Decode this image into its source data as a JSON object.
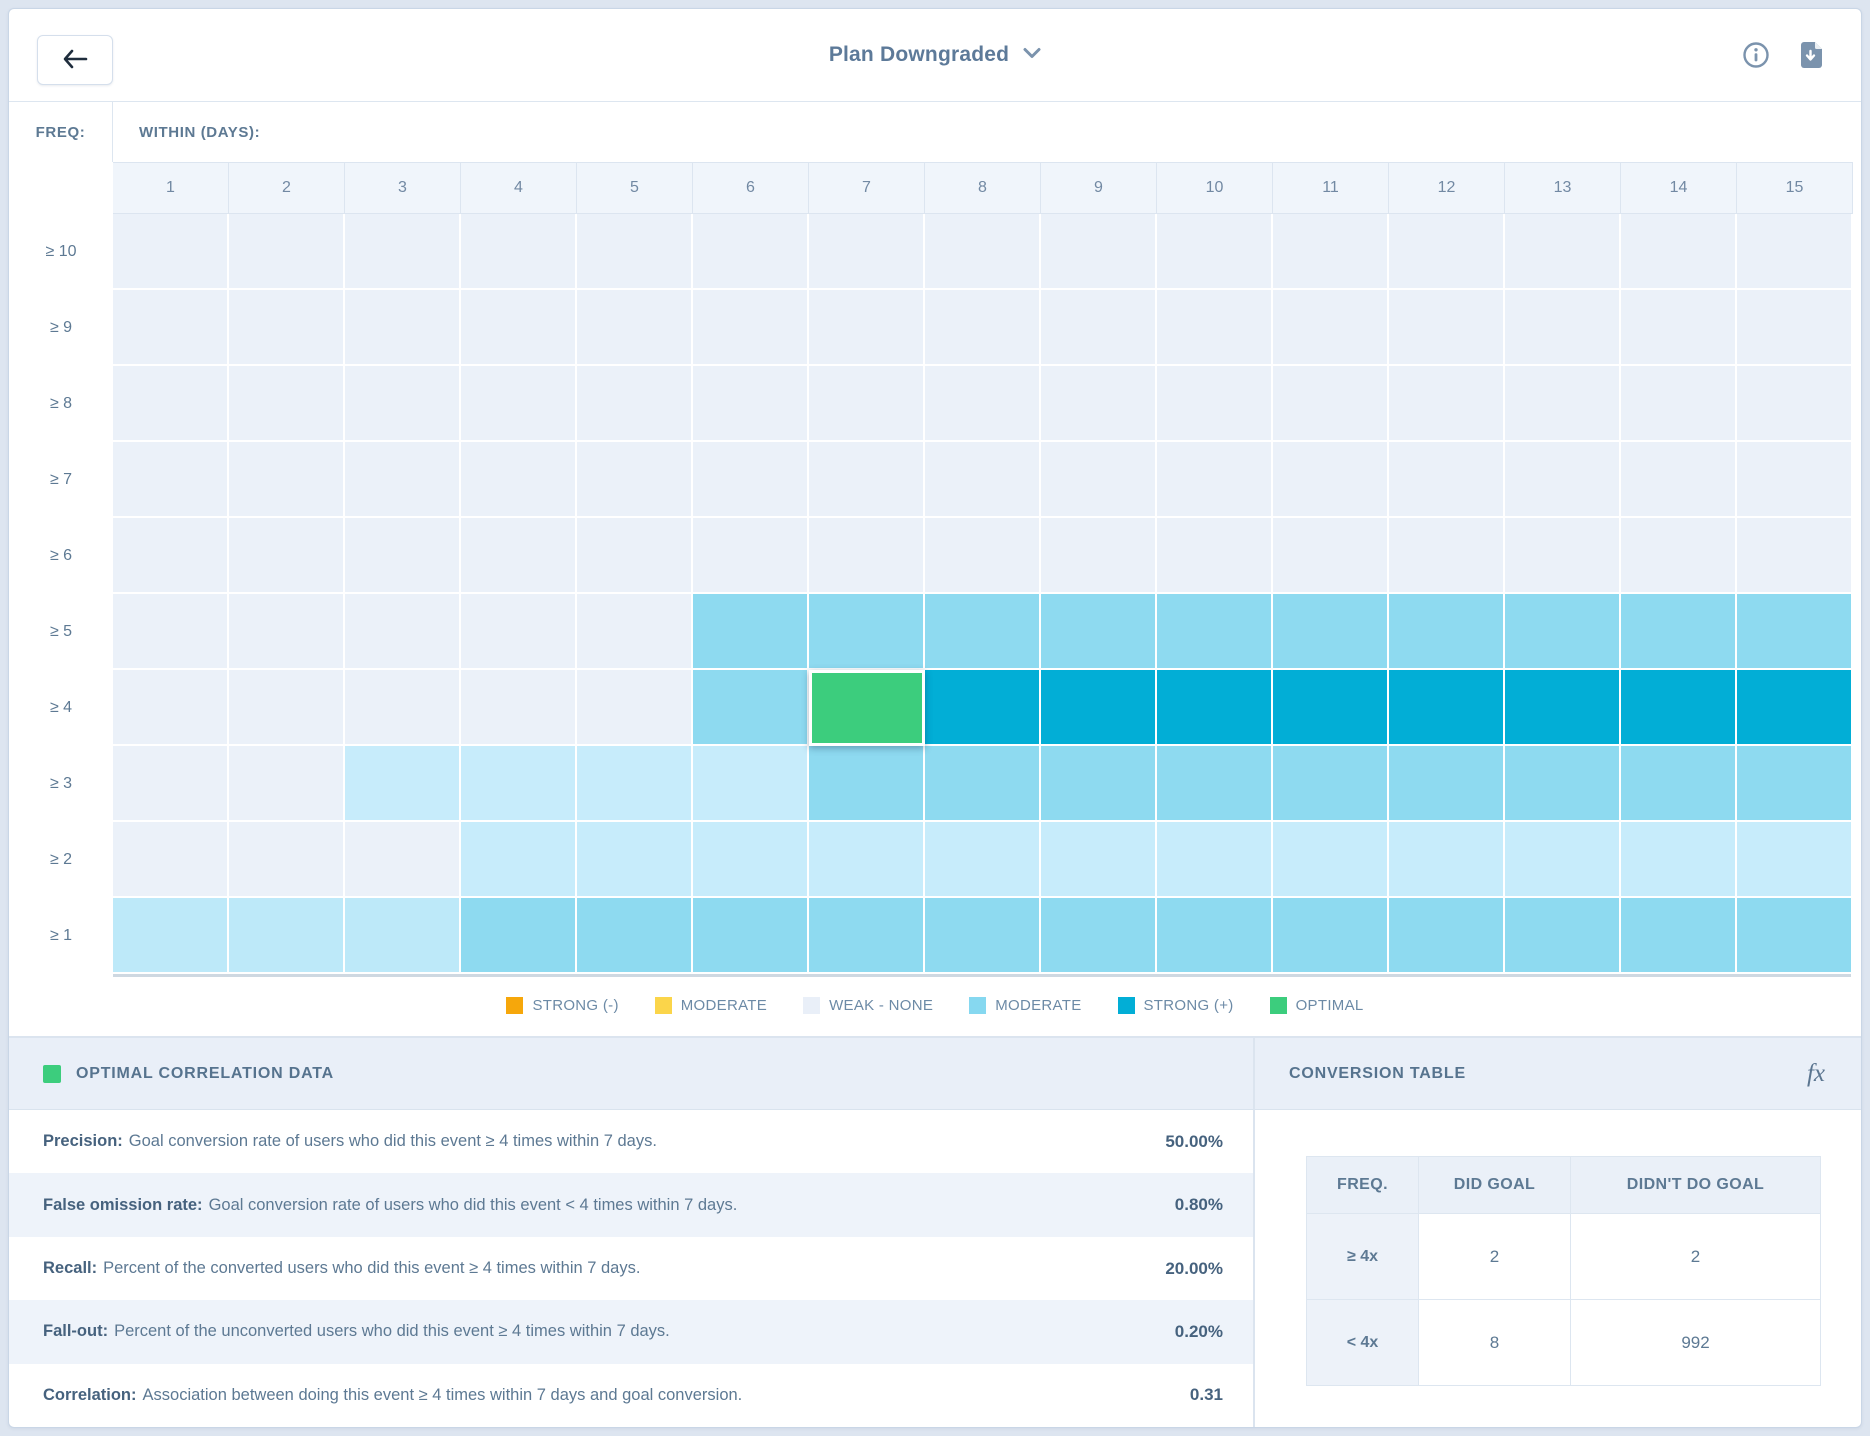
{
  "header": {
    "title": "Plan Downgraded",
    "back_icon": "left-arrow",
    "chevron_icon": "chevron-down",
    "info_icon": "info-circle",
    "download_icon": "export-document"
  },
  "matrix": {
    "freq_label": "FREQ:",
    "within_label": "WITHIN (DAYS):",
    "columns": [
      "1",
      "2",
      "3",
      "4",
      "5",
      "6",
      "7",
      "8",
      "9",
      "10",
      "11",
      "12",
      "13",
      "14",
      "15"
    ],
    "rows": [
      {
        "label": "≥ 10",
        "cells": [
          "w",
          "w",
          "w",
          "w",
          "w",
          "w",
          "w",
          "w",
          "w",
          "w",
          "w",
          "w",
          "w",
          "w",
          "w"
        ]
      },
      {
        "label": "≥ 9",
        "cells": [
          "w",
          "w",
          "w",
          "w",
          "w",
          "w",
          "w",
          "w",
          "w",
          "w",
          "w",
          "w",
          "w",
          "w",
          "w"
        ]
      },
      {
        "label": "≥ 8",
        "cells": [
          "w",
          "w",
          "w",
          "w",
          "w",
          "w",
          "w",
          "w",
          "w",
          "w",
          "w",
          "w",
          "w",
          "w",
          "w"
        ]
      },
      {
        "label": "≥ 7",
        "cells": [
          "w",
          "w",
          "w",
          "w",
          "w",
          "w",
          "w",
          "w",
          "w",
          "w",
          "w",
          "w",
          "w",
          "w",
          "w"
        ]
      },
      {
        "label": "≥ 6",
        "cells": [
          "w",
          "w",
          "w",
          "w",
          "w",
          "w",
          "w",
          "w",
          "w",
          "w",
          "w",
          "w",
          "w",
          "w",
          "w"
        ]
      },
      {
        "label": "≥ 5",
        "cells": [
          "w",
          "w",
          "w",
          "w",
          "w",
          "m",
          "m",
          "m",
          "m",
          "m",
          "m",
          "m",
          "m",
          "m",
          "m"
        ]
      },
      {
        "label": "≥ 4",
        "cells": [
          "w",
          "w",
          "w",
          "w",
          "w",
          "m",
          "o",
          "s",
          "s",
          "s",
          "s",
          "s",
          "s",
          "s",
          "s"
        ]
      },
      {
        "label": "≥ 3",
        "cells": [
          "w",
          "w",
          "p1",
          "p1",
          "p1",
          "p1",
          "m",
          "m",
          "m",
          "m",
          "m",
          "m",
          "m",
          "m",
          "m"
        ]
      },
      {
        "label": "≥ 2",
        "cells": [
          "w",
          "w",
          "w",
          "p1",
          "p1",
          "p1",
          "p1",
          "p1",
          "p1",
          "p1",
          "p1",
          "p1",
          "p1",
          "p1",
          "p1"
        ]
      },
      {
        "label": "≥ 1",
        "cells": [
          "p2",
          "p2",
          "p2",
          "m",
          "m",
          "m",
          "m",
          "m",
          "m",
          "m",
          "m",
          "m",
          "m",
          "m",
          "m"
        ]
      }
    ],
    "selected": {
      "row_index": 6,
      "col_index": 6,
      "freq": "≥ 4",
      "day": "7"
    },
    "hatch_cells": [
      [
        5,
        6
      ],
      [
        6,
        5
      ],
      [
        6,
        7
      ],
      [
        7,
        6
      ]
    ]
  },
  "colors": {
    "levels": {
      "w": "#ebf1f9",
      "p1": "#c7ecfb",
      "p2": "#bde9f9",
      "m": "#8edaf0",
      "s": "#02aed6",
      "o": "#3ccd7d"
    }
  },
  "legend": {
    "items": [
      {
        "label": "STRONG (-)",
        "color": "#f6a70b",
        "hatch": false
      },
      {
        "label": "MODERATE",
        "color": "#fbd54a",
        "hatch": false
      },
      {
        "label": "WEAK - NONE",
        "color": "#e9eff8",
        "hatch": false
      },
      {
        "label": "MODERATE",
        "color": "#86d8f0",
        "hatch": true
      },
      {
        "label": "STRONG (+)",
        "color": "#02aed6",
        "hatch": false
      },
      {
        "label": "OPTIMAL",
        "color": "#3ccd7d",
        "hatch": false
      }
    ]
  },
  "optimal_panel": {
    "title": "OPTIMAL CORRELATION DATA",
    "swatch_color": "#3ccd7d",
    "stats": [
      {
        "label": "Precision:",
        "description": "Goal conversion rate of users who did this event ≥ 4 times within 7 days.",
        "value": "50.00%"
      },
      {
        "label": "False omission rate:",
        "description": "Goal conversion rate of users who did this event < 4 times within 7 days.",
        "value": "0.80%"
      },
      {
        "label": "Recall:",
        "description": "Percent of the converted users who did this event ≥ 4 times within 7 days.",
        "value": "20.00%"
      },
      {
        "label": "Fall-out:",
        "description": "Percent of the unconverted users who did this event ≥ 4 times within 7 days.",
        "value": "0.20%"
      },
      {
        "label": "Correlation:",
        "description": "Association between doing this event ≥ 4 times within 7 days and goal conversion.",
        "value": "0.31"
      }
    ]
  },
  "conversion_panel": {
    "title": "CONVERSION TABLE",
    "fx_label": "fx",
    "table": {
      "headers": [
        "FREQ.",
        "DID GOAL",
        "DIDN'T DO GOAL"
      ],
      "rows": [
        {
          "freq": "≥ 4x",
          "did": "2",
          "didnt": "2"
        },
        {
          "freq": "< 4x",
          "did": "8",
          "didnt": "992"
        }
      ]
    }
  }
}
